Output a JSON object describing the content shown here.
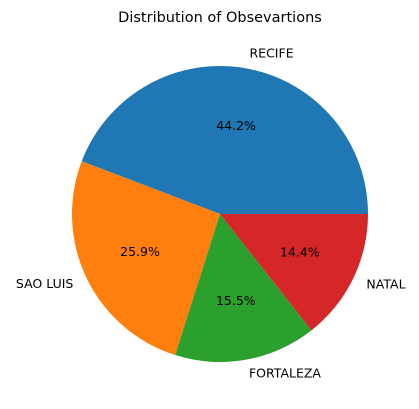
{
  "chart_data": {
    "type": "pie",
    "title": "Distribution of Obsevartions",
    "categories": [
      "RECIFE",
      "SAO LUIS",
      "FORTALEZA",
      "NATAL"
    ],
    "values": [
      44.2,
      25.9,
      15.5,
      14.4
    ],
    "value_labels": [
      "44.2%",
      "25.9%",
      "15.5%",
      "14.4%"
    ],
    "colors": [
      "#1f77b4",
      "#ff7f0e",
      "#2ca02c",
      "#d62728"
    ],
    "start_angle_deg": 0,
    "direction": "counterclockwise",
    "legend": "none"
  }
}
